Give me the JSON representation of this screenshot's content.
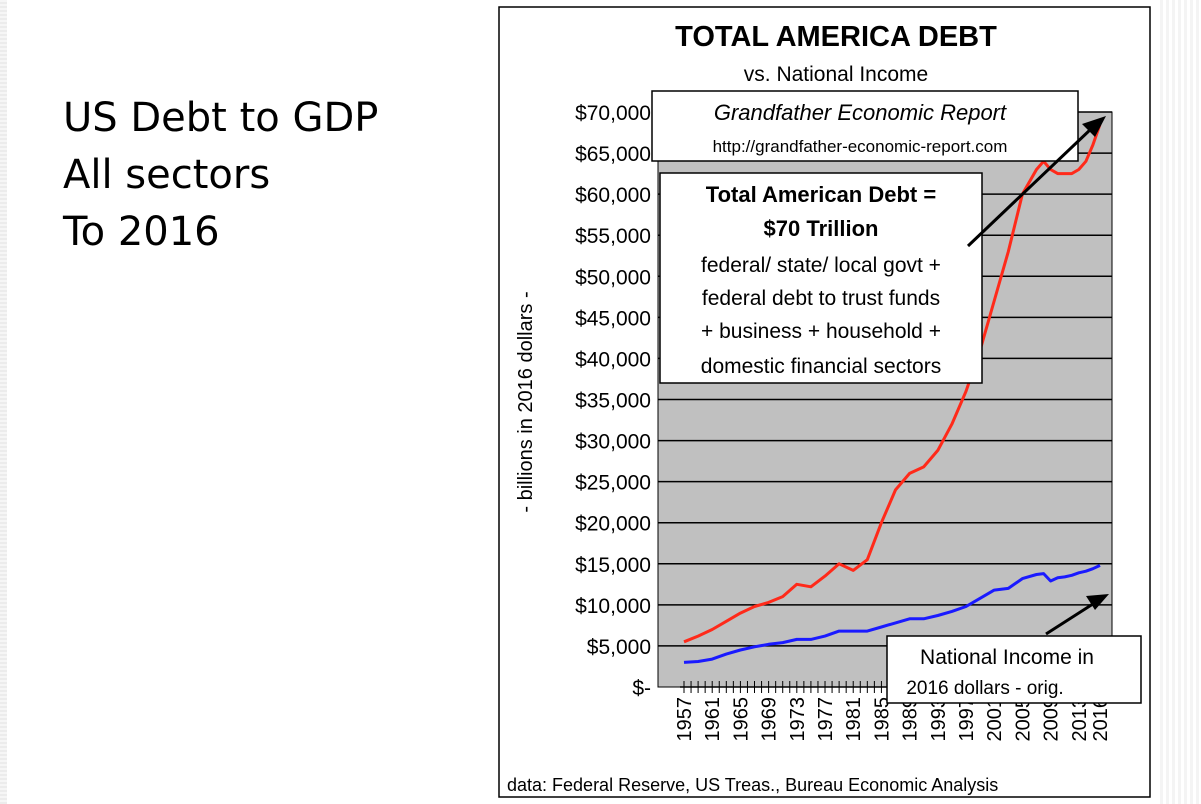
{
  "slide": {
    "heading_lines": [
      "US Debt to GDP",
      "All sectors",
      "To 2016"
    ]
  },
  "chart_data": {
    "type": "line",
    "title": "TOTAL AMERICA DEBT",
    "subtitle": "vs. National Income",
    "ylabel": "- billions in 2016 dollars -",
    "ylim": [
      0,
      70000
    ],
    "xlim": [
      1957,
      2016
    ],
    "y_ticks": [
      0,
      5000,
      10000,
      15000,
      20000,
      25000,
      30000,
      35000,
      40000,
      45000,
      50000,
      55000,
      60000,
      65000,
      70000
    ],
    "y_tick_labels": [
      "$-",
      "$5,000",
      "$10,000",
      "$15,000",
      "$20,000",
      "$25,000",
      "$30,000",
      "$35,000",
      "$40,000",
      "$45,000",
      "$50,000",
      "$55,000",
      "$60,000",
      "$65,000",
      "$70,000"
    ],
    "x_tick_labels": [
      "1957",
      "1961",
      "1965",
      "1969",
      "1973",
      "1977",
      "1981",
      "1985",
      "1989",
      "1993",
      "1997",
      "2001",
      "2005",
      "2009",
      "2013",
      "2016"
    ],
    "grid": true,
    "colors": {
      "debt": "#ff2a1a",
      "income": "#1a1aff",
      "plot_bg": "#c0c0c0"
    },
    "series": [
      {
        "key": "debt",
        "x": [
          1957,
          1959,
          1961,
          1963,
          1965,
          1967,
          1969,
          1971,
          1973,
          1975,
          1977,
          1979,
          1981,
          1983,
          1985,
          1987,
          1989,
          1991,
          1993,
          1995,
          1997,
          1999,
          2001,
          2003,
          2005,
          2007,
          2008,
          2009,
          2010,
          2011,
          2012,
          2013,
          2014,
          2015,
          2016
        ],
        "values": [
          5500,
          6200,
          7000,
          8000,
          9000,
          9800,
          10300,
          11000,
          12500,
          12200,
          13500,
          15000,
          14200,
          15500,
          20000,
          24000,
          26000,
          26800,
          28800,
          32000,
          36000,
          41000,
          47000,
          53000,
          60000,
          63000,
          64000,
          63000,
          62500,
          62500,
          62500,
          63000,
          64000,
          66000,
          68500
        ]
      },
      {
        "key": "income",
        "x": [
          1957,
          1959,
          1961,
          1963,
          1965,
          1967,
          1969,
          1971,
          1973,
          1975,
          1977,
          1979,
          1981,
          1983,
          1985,
          1987,
          1989,
          1991,
          1993,
          1995,
          1997,
          1999,
          2001,
          2003,
          2005,
          2007,
          2008,
          2009,
          2010,
          2011,
          2012,
          2013,
          2014,
          2015,
          2016
        ],
        "values": [
          3000,
          3100,
          3400,
          4000,
          4500,
          4900,
          5200,
          5400,
          5800,
          5800,
          6200,
          6800,
          6800,
          6800,
          7300,
          7800,
          8300,
          8300,
          8700,
          9200,
          9800,
          10800,
          11800,
          12000,
          13200,
          13700,
          13800,
          12900,
          13300,
          13400,
          13600,
          13900,
          14100,
          14400,
          14800
        ]
      }
    ],
    "annotations": {
      "report_title": "Grandfather Economic Report",
      "report_url": "http://grandfather-economic-report.com",
      "debt_box_title_1": "Total American Debt =",
      "debt_box_title_2": "$70 Trillion",
      "debt_box_lines": [
        "federal/ state/ local govt +",
        "federal debt to trust funds",
        "+ business + household +",
        "domestic financial sectors"
      ],
      "income_box_lines": [
        "National Income in",
        "2016 dollars - orig."
      ],
      "source": "data: Federal Reserve, US Treas., Bureau Economic Analysis"
    }
  }
}
